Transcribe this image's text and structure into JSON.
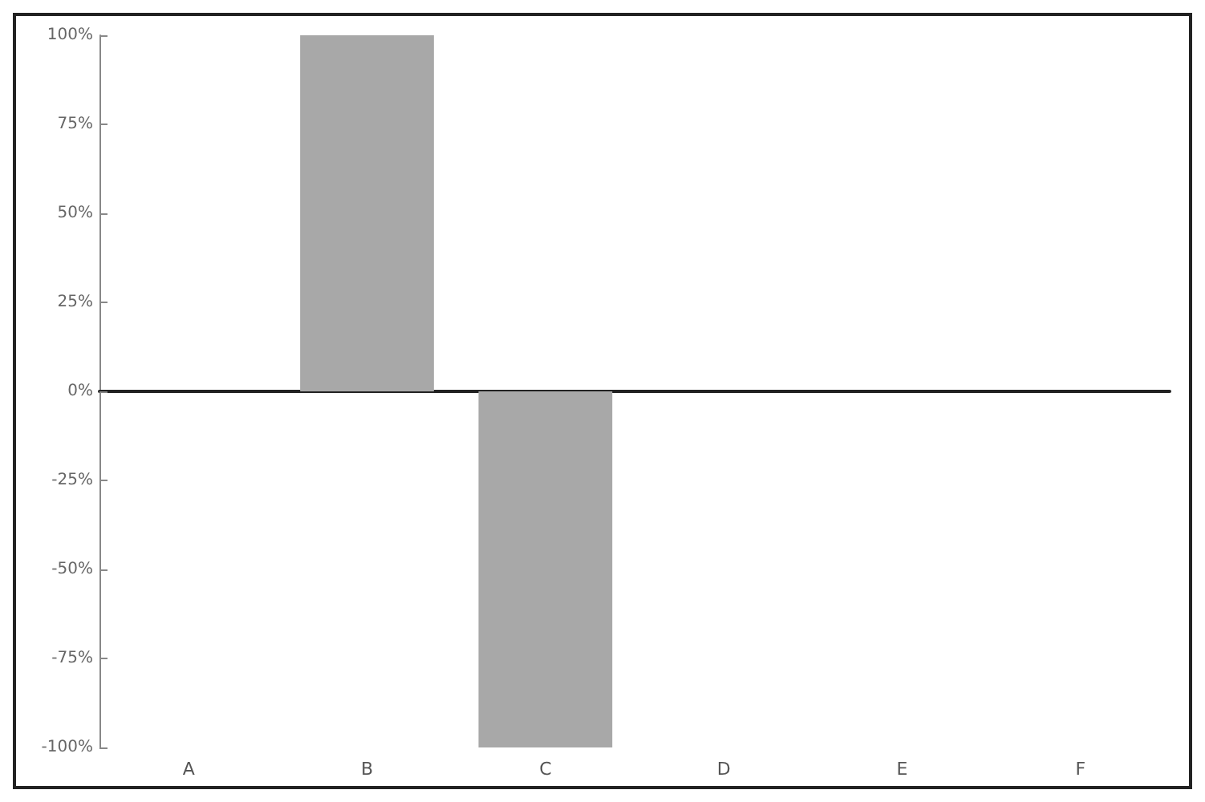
{
  "chart_data": {
    "type": "bar",
    "categories": [
      "A",
      "B",
      "C",
      "D",
      "E",
      "F"
    ],
    "values": [
      0,
      100,
      -100,
      0,
      0,
      0
    ],
    "color": "#a8a8a8",
    "ylim": [
      -100,
      100
    ],
    "yticks": [
      {
        "value": 100,
        "label": "100%"
      },
      {
        "value": 75,
        "label": "75%"
      },
      {
        "value": 50,
        "label": "50%"
      },
      {
        "value": 25,
        "label": "25%"
      },
      {
        "value": 0,
        "label": "0%"
      },
      {
        "value": -25,
        "label": "-25%"
      },
      {
        "value": -50,
        "label": "-50%"
      },
      {
        "value": -75,
        "label": "-75%"
      },
      {
        "value": -100,
        "label": "-100%"
      }
    ]
  }
}
